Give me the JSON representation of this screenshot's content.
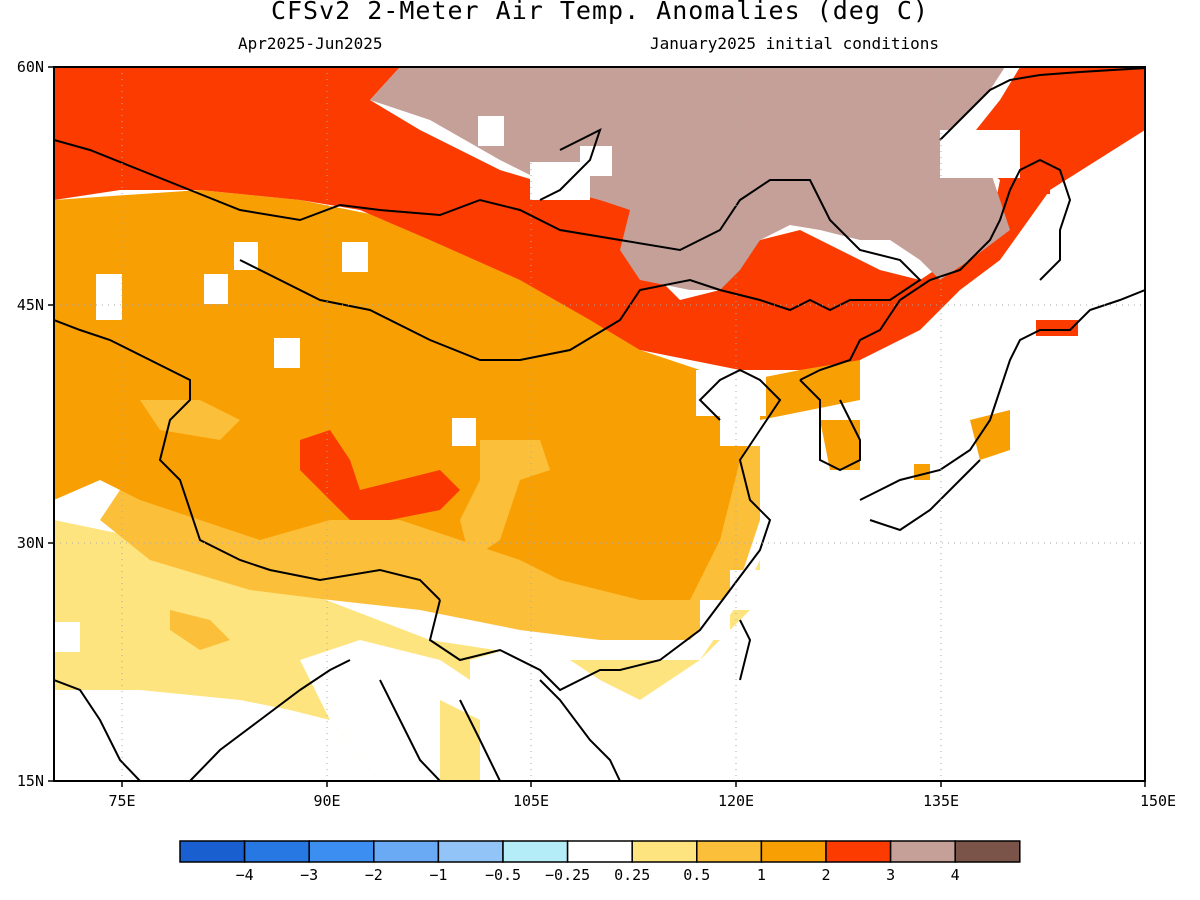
{
  "header": {
    "title": "CFSv2 2-Meter Air Temp. Anomalies (deg C)",
    "period": "Apr2025-Jun2025",
    "initial_conditions": "January2025 initial conditions"
  },
  "map": {
    "lon_range": [
      70,
      150
    ],
    "lat_range": [
      15,
      60
    ],
    "lat_labels": [
      "60N",
      "45N",
      "30N",
      "15N"
    ],
    "lon_labels": [
      "75E",
      "90E",
      "105E",
      "120E",
      "135E",
      "150E"
    ],
    "anomaly_regions": [
      {
        "category": "2 to 3",
        "area": "Mongolia, northern Xinjiang, Inner Mongolia, Manchuria, Kazakhstan north"
      },
      {
        "category": "3 to 4",
        "area": "Siberia / Lake Baikal region, northeastern Mongolia"
      },
      {
        "category": "1 to 2",
        "area": "Tibetan Plateau, central and southern China, Kazakhstan"
      },
      {
        "category": "2 to 3",
        "area": "Qinghai patch, Sakhalin, northern Japan, Korean coast"
      },
      {
        "category": "0.5 to 1",
        "area": "western Tibet, southwest China margin"
      },
      {
        "category": "0.25 to 0.5",
        "area": "India, Myanmar, Bay of Bengal coast"
      }
    ]
  },
  "colorbar": {
    "labels": [
      "-4",
      "-3",
      "-2",
      "-1",
      "-0.5",
      "-0.25",
      "0.25",
      "0.5",
      "1",
      "2",
      "3",
      "4"
    ],
    "colors": [
      "#1a5fcf",
      "#2878e4",
      "#3c8ef0",
      "#6aaaf4",
      "#92c4f8",
      "#b4ecf8",
      "#ffffff",
      "#fde47f",
      "#fcbf3a",
      "#f89f04",
      "#fb3b00",
      "#c4a098",
      "#7a5448"
    ]
  }
}
